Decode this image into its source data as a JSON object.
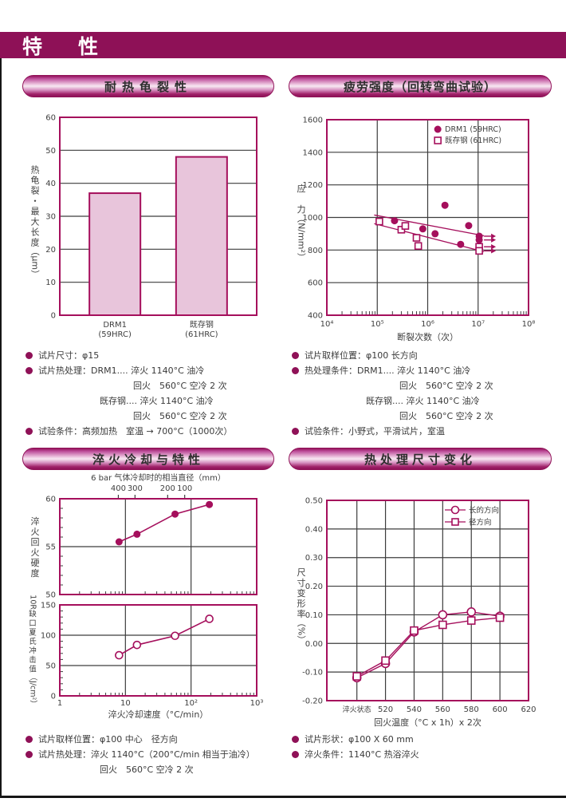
{
  "page": {
    "header_title": "特　性"
  },
  "panels": {
    "heat_crack": {
      "title": "耐热龟裂性",
      "notes": [
        {
          "b": 1,
          "t": "试片尺寸：φ15"
        },
        {
          "b": 1,
          "t": "试片热处理：DRM1.... 淬火 1140°C 油冷"
        },
        {
          "b": 0,
          "i": 2,
          "t": "回火　560°C 空冷 2 次"
        },
        {
          "b": 0,
          "i": 1,
          "t": "既存钢.... 淬火 1140°C 油冷"
        },
        {
          "b": 0,
          "i": 2,
          "t": "回火　560°C 空冷 2 次"
        },
        {
          "b": 1,
          "t": "试验条件：高频加热　室温 → 700°C（1000次）"
        }
      ]
    },
    "fatigue": {
      "title": "疲劳强度（回转弯曲试验）",
      "notes": [
        {
          "b": 1,
          "t": "试片取样位置：φ100 长方向"
        },
        {
          "b": 1,
          "t": "热处理条件：DRM1.... 淬火 1140°C 油冷"
        },
        {
          "b": 0,
          "i": 2,
          "t": "回火　560°C 空冷 2 次"
        },
        {
          "b": 0,
          "i": 1,
          "t": "既存钢.... 淬火 1140°C 油冷"
        },
        {
          "b": 0,
          "i": 2,
          "t": "回火　560°C 空冷 2 次"
        },
        {
          "b": 1,
          "t": "试验条件：小野式，平滑试片，室温"
        }
      ]
    },
    "quench_cooling": {
      "title": "淬火冷却与特性",
      "notes": [
        {
          "b": 1,
          "t": "试片取样位置：φ100 中心　径方向"
        },
        {
          "b": 1,
          "t": "试片热处理：淬火 1140°C（200°C/min 相当于油冷）"
        },
        {
          "b": 0,
          "i": 1,
          "t": "回火　560°C 空冷 2 次"
        }
      ]
    },
    "dimension_change": {
      "title": "热处理尺寸变化",
      "notes": [
        {
          "b": 1,
          "t": "试片形状：φ100 X 60 mm"
        },
        {
          "b": 1,
          "t": "淬火条件：1140°C 热浴淬火"
        }
      ]
    }
  },
  "colors": {
    "accent": "#A50F5C",
    "band": "#8E1157",
    "bar_fill": "#E8C5DB",
    "grid": "#3d3d3d"
  },
  "chart_data": [
    {
      "type": "bar",
      "title": "耐热龟裂性",
      "categories": [
        [
          "DRM1",
          "(59HRC)"
        ],
        [
          "既存钢",
          "(61HRC)"
        ]
      ],
      "values": [
        37,
        48
      ],
      "ylabel": "热龟裂・最大长度（μm）",
      "ylim": [
        0,
        60
      ],
      "ytick_step": 10
    },
    {
      "type": "scatter-log",
      "title": "疲劳强度（回转弯曲试验）",
      "xlabel": "断裂次数（次）",
      "ylabel": "应　力（N/mm²）",
      "xlim": [
        10000,
        100000000
      ],
      "xticks": [
        "10⁴",
        "10⁵",
        "10⁶",
        "10⁷",
        "10⁸"
      ],
      "ylim": [
        400,
        1600
      ],
      "ytick_step": 200,
      "series": [
        {
          "name": "DRM1 (59HRC)",
          "marker": "circle-filled",
          "points": [
            [
              220000,
              980
            ],
            [
              800000,
              930
            ],
            [
              1400000,
              900
            ],
            [
              2200000,
              1075
            ],
            [
              4500000,
              835
            ],
            [
              6500000,
              950
            ],
            [
              10500000,
              885,
              "arrow"
            ],
            [
              10500000,
              862,
              "arrow"
            ]
          ]
        },
        {
          "name": "既存钢 (61HRC)",
          "marker": "square-open",
          "points": [
            [
              110000,
              975
            ],
            [
              300000,
              925
            ],
            [
              360000,
              948
            ],
            [
              600000,
              875
            ],
            [
              650000,
              825
            ],
            [
              10500000,
              820,
              "arrow"
            ],
            [
              10500000,
              795,
              "arrow"
            ]
          ]
        }
      ],
      "trend_lines": [
        [
          [
            87000,
            1015
          ],
          [
            13000000,
            888
          ]
        ],
        [
          [
            87000,
            962
          ],
          [
            13000000,
            790
          ]
        ]
      ]
    },
    {
      "type": "dual-line-log",
      "title": "淬火冷却与特性",
      "top_axis": {
        "label": "6 bar 气体冷却时的相当直径（mm）",
        "ticks": [
          {
            "v": 7.8,
            "label": "400"
          },
          {
            "v": 14,
            "label": "300"
          },
          {
            "v": 44,
            "label": "200"
          },
          {
            "v": 80,
            "label": "100"
          }
        ]
      },
      "xlabel": "淬火冷却速度（°C/min）",
      "xlim": [
        1,
        1000
      ],
      "xticks": [
        "1",
        "10",
        "10²",
        "10³"
      ],
      "upper": {
        "ylabel": "淬火回火硬度",
        "ylim": [
          50,
          60
        ],
        "yticks": [
          50,
          55,
          60
        ],
        "ytick_minor": 1,
        "marker": "circle-filled",
        "points": [
          [
            8,
            55.5
          ],
          [
            15,
            56.3
          ],
          [
            57,
            58.4
          ],
          [
            190,
            59.4
          ]
        ]
      },
      "lower": {
        "ylabel": "10R缺口夏氏冲击值（J/cm²）",
        "ylim": [
          0,
          150
        ],
        "yticks": [
          0,
          50,
          100,
          150
        ],
        "ytick_minor": 10,
        "marker": "circle-open",
        "points": [
          [
            8,
            67
          ],
          [
            15,
            84
          ],
          [
            57,
            99
          ],
          [
            190,
            127
          ]
        ]
      }
    },
    {
      "type": "line",
      "title": "热处理尺寸变化",
      "xlabel": "回火温度（°C x 1h）x 2次",
      "ylabel": "尺寸变形率（%）",
      "ylim": [
        -0.2,
        0.5
      ],
      "xlim": [
        479,
        620
      ],
      "xticks": [
        {
          "v": 500,
          "label": "淬火状态"
        },
        {
          "v": 520,
          "label": "520"
        },
        {
          "v": 540,
          "label": "540"
        },
        {
          "v": 560,
          "label": "560"
        },
        {
          "v": 580,
          "label": "580"
        },
        {
          "v": 600,
          "label": "600"
        },
        {
          "v": 620,
          "label": "620"
        }
      ],
      "series": [
        {
          "name": "长的方向",
          "marker": "circle-open",
          "points": [
            [
              500,
              -0.12
            ],
            [
              520,
              -0.07
            ],
            [
              540,
              0.04
            ],
            [
              560,
              0.1
            ],
            [
              580,
              0.11
            ],
            [
              600,
              0.095
            ]
          ]
        },
        {
          "name": "径方向",
          "marker": "square-open",
          "points": [
            [
              500,
              -0.115
            ],
            [
              520,
              -0.06
            ],
            [
              540,
              0.045
            ],
            [
              560,
              0.065
            ],
            [
              580,
              0.08
            ],
            [
              600,
              0.09
            ]
          ]
        }
      ]
    }
  ]
}
